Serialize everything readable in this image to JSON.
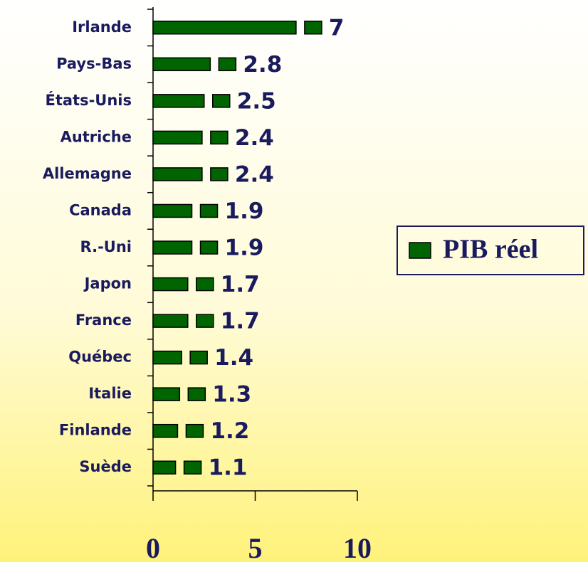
{
  "chart_data": {
    "type": "bar",
    "orientation": "horizontal",
    "categories": [
      "Irlande",
      "Pays-Bas",
      "États-Unis",
      "Autriche",
      "Allemagne",
      "Canada",
      "R.-Uni",
      "Japon",
      "France",
      "Québec",
      "Italie",
      "Finlande",
      "Suède"
    ],
    "series": [
      {
        "name": "PIB réel",
        "color": "#006400",
        "values": [
          7,
          2.8,
          2.5,
          2.4,
          2.4,
          1.9,
          1.9,
          1.7,
          1.7,
          1.4,
          1.3,
          1.2,
          1.1
        ]
      }
    ],
    "xlim": [
      0,
      10
    ],
    "xticks": [
      0,
      5,
      10
    ],
    "legend": "right"
  }
}
